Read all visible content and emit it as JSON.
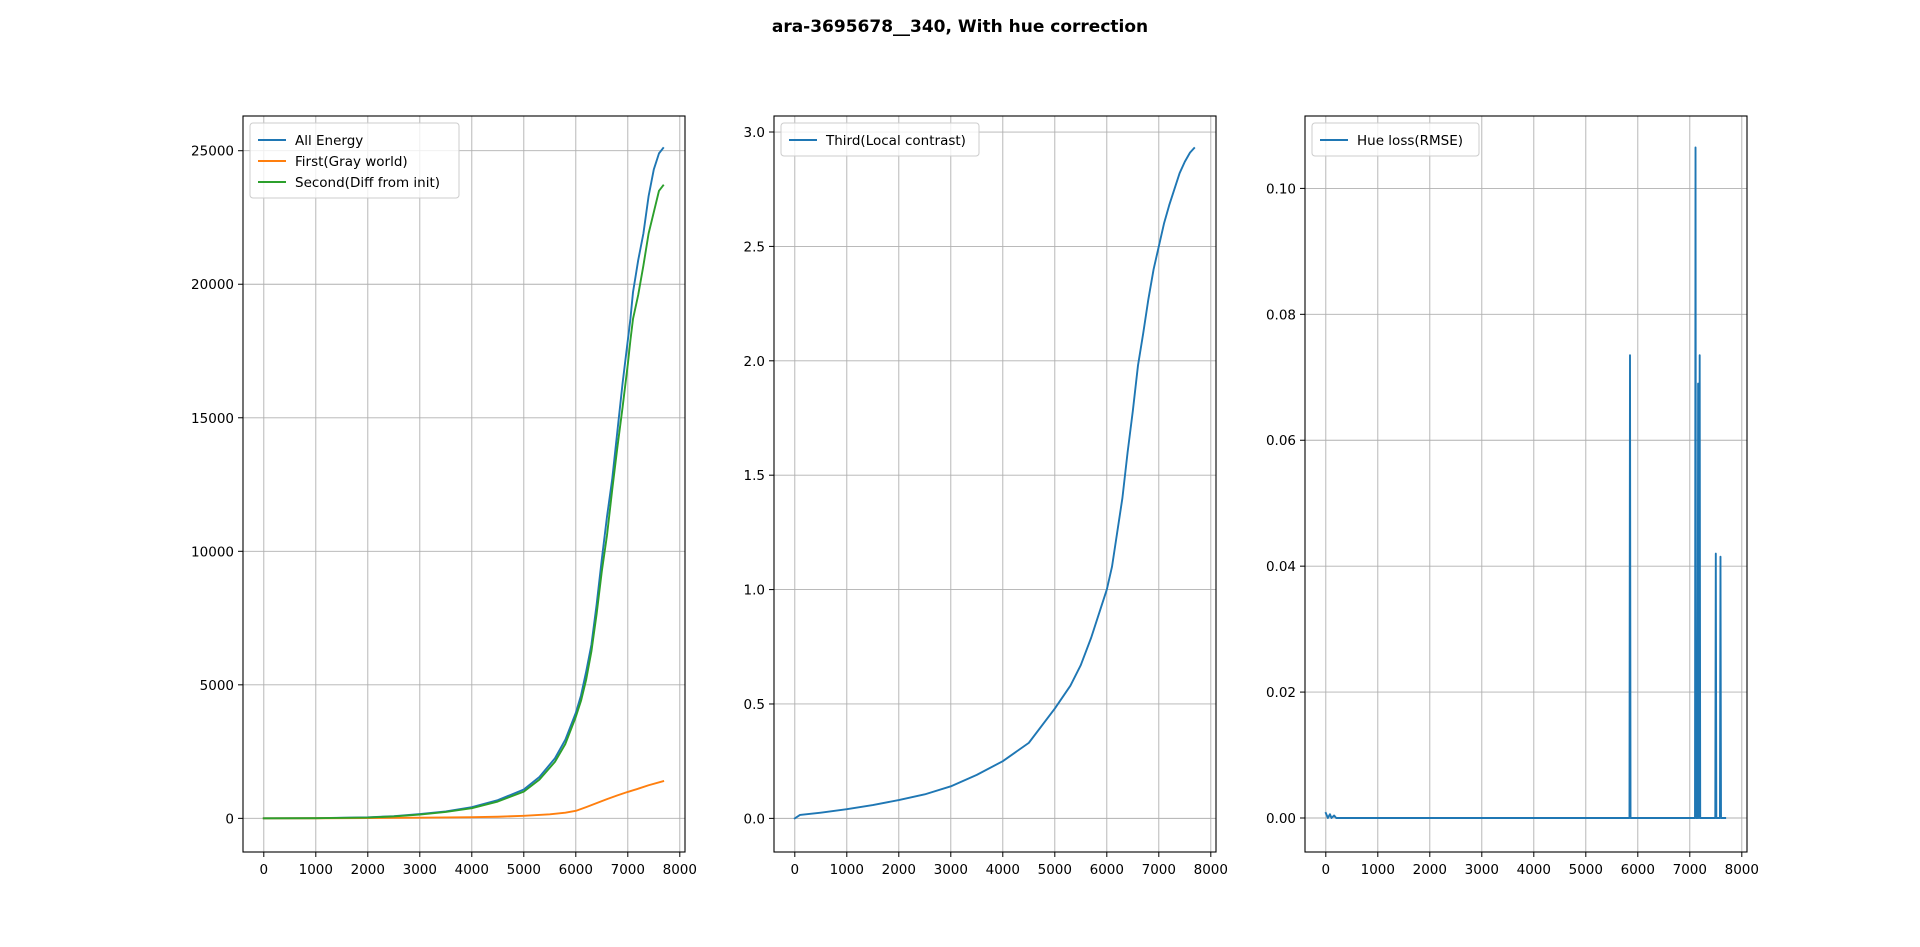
{
  "figure": {
    "title": "ara-3695678__340, With hue correction"
  },
  "chart_data": [
    {
      "type": "line",
      "title": "",
      "xlabel": "",
      "ylabel": "",
      "xlim": [
        -400,
        8100
      ],
      "ylim": [
        -1260,
        26300
      ],
      "xticks": [
        0,
        1000,
        2000,
        3000,
        4000,
        5000,
        6000,
        7000,
        8000
      ],
      "xtick_labels": [
        "0",
        "1000",
        "2000",
        "3000",
        "4000",
        "5000",
        "6000",
        "7000",
        "8000"
      ],
      "yticks": [
        0,
        5000,
        10000,
        15000,
        20000,
        25000
      ],
      "ytick_labels": [
        "0",
        "5000",
        "10000",
        "15000",
        "20000",
        "25000"
      ],
      "grid": true,
      "legend": "upper left",
      "series": [
        {
          "name": "All Energy",
          "color": "#1f77b4",
          "points": [
            [
              0,
              0
            ],
            [
              1000,
              8
            ],
            [
              2000,
              40
            ],
            [
              2500,
              80
            ],
            [
              3000,
              160
            ],
            [
              3500,
              260
            ],
            [
              4000,
              420
            ],
            [
              4500,
              680
            ],
            [
              5000,
              1080
            ],
            [
              5300,
              1550
            ],
            [
              5600,
              2250
            ],
            [
              5800,
              2950
            ],
            [
              6000,
              3950
            ],
            [
              6100,
              4600
            ],
            [
              6200,
              5500
            ],
            [
              6300,
              6500
            ],
            [
              6400,
              8000
            ],
            [
              6500,
              9700
            ],
            [
              6600,
              11300
            ],
            [
              6700,
              12700
            ],
            [
              6800,
              14500
            ],
            [
              6900,
              16300
            ],
            [
              7000,
              17900
            ],
            [
              7050,
              18700
            ],
            [
              7100,
              19700
            ],
            [
              7200,
              20900
            ],
            [
              7300,
              21900
            ],
            [
              7400,
              23300
            ],
            [
              7500,
              24300
            ],
            [
              7600,
              24900
            ],
            [
              7680,
              25100
            ]
          ]
        },
        {
          "name": "First(Gray world)",
          "color": "#ff7f0e",
          "points": [
            [
              0,
              0
            ],
            [
              1000,
              4
            ],
            [
              2000,
              12
            ],
            [
              3000,
              25
            ],
            [
              4000,
              45
            ],
            [
              4500,
              60
            ],
            [
              5000,
              95
            ],
            [
              5500,
              150
            ],
            [
              5800,
              210
            ],
            [
              6000,
              280
            ],
            [
              6200,
              420
            ],
            [
              6400,
              570
            ],
            [
              6600,
              720
            ],
            [
              6800,
              860
            ],
            [
              7000,
              990
            ],
            [
              7200,
              1110
            ],
            [
              7400,
              1240
            ],
            [
              7680,
              1390
            ]
          ]
        },
        {
          "name": "Second(Diff from init)",
          "color": "#2ca02c",
          "points": [
            [
              0,
              0
            ],
            [
              1000,
              8
            ],
            [
              2000,
              30
            ],
            [
              2500,
              70
            ],
            [
              3000,
              140
            ],
            [
              3500,
              240
            ],
            [
              4000,
              380
            ],
            [
              4500,
              630
            ],
            [
              5000,
              1000
            ],
            [
              5300,
              1450
            ],
            [
              5600,
              2120
            ],
            [
              5800,
              2790
            ],
            [
              6000,
              3800
            ],
            [
              6100,
              4400
            ],
            [
              6200,
              5200
            ],
            [
              6300,
              6250
            ],
            [
              6400,
              7650
            ],
            [
              6500,
              9250
            ],
            [
              6600,
              10600
            ],
            [
              6700,
              12300
            ],
            [
              6800,
              13900
            ],
            [
              6900,
              15400
            ],
            [
              7000,
              17000
            ],
            [
              7050,
              17900
            ],
            [
              7100,
              18700
            ],
            [
              7200,
              19600
            ],
            [
              7300,
              20700
            ],
            [
              7400,
              21900
            ],
            [
              7500,
              22700
            ],
            [
              7600,
              23500
            ],
            [
              7680,
              23700
            ]
          ]
        }
      ]
    },
    {
      "type": "line",
      "title": "",
      "xlabel": "",
      "ylabel": "",
      "xlim": [
        -400,
        8100
      ],
      "ylim": [
        -0.147,
        3.07
      ],
      "xticks": [
        0,
        1000,
        2000,
        3000,
        4000,
        5000,
        6000,
        7000,
        8000
      ],
      "xtick_labels": [
        "0",
        "1000",
        "2000",
        "3000",
        "4000",
        "5000",
        "6000",
        "7000",
        "8000"
      ],
      "yticks": [
        0,
        0.5,
        1.0,
        1.5,
        2.0,
        2.5,
        3.0
      ],
      "ytick_labels": [
        "0.0",
        "0.5",
        "1.0",
        "1.5",
        "2.0",
        "2.5",
        "3.0"
      ],
      "grid": true,
      "legend": "upper left",
      "series": [
        {
          "name": "Third(Local contrast)",
          "color": "#1f77b4",
          "points": [
            [
              0,
              0
            ],
            [
              100,
              0.015
            ],
            [
              500,
              0.025
            ],
            [
              1000,
              0.04
            ],
            [
              1500,
              0.058
            ],
            [
              2000,
              0.08
            ],
            [
              2500,
              0.105
            ],
            [
              3000,
              0.14
            ],
            [
              3500,
              0.19
            ],
            [
              4000,
              0.25
            ],
            [
              4500,
              0.33
            ],
            [
              5000,
              0.48
            ],
            [
              5300,
              0.58
            ],
            [
              5500,
              0.67
            ],
            [
              5700,
              0.79
            ],
            [
              5900,
              0.93
            ],
            [
              6000,
              1.0
            ],
            [
              6100,
              1.1
            ],
            [
              6200,
              1.25
            ],
            [
              6300,
              1.4
            ],
            [
              6400,
              1.6
            ],
            [
              6500,
              1.78
            ],
            [
              6600,
              1.98
            ],
            [
              6700,
              2.12
            ],
            [
              6800,
              2.27
            ],
            [
              6900,
              2.4
            ],
            [
              7000,
              2.5
            ],
            [
              7100,
              2.6
            ],
            [
              7200,
              2.68
            ],
            [
              7300,
              2.75
            ],
            [
              7400,
              2.82
            ],
            [
              7500,
              2.87
            ],
            [
              7600,
              2.91
            ],
            [
              7680,
              2.93
            ]
          ]
        }
      ]
    },
    {
      "type": "line",
      "title": "",
      "xlabel": "",
      "ylabel": "",
      "xlim": [
        -400,
        8100
      ],
      "ylim": [
        -0.0054,
        0.1115
      ],
      "xticks": [
        0,
        1000,
        2000,
        3000,
        4000,
        5000,
        6000,
        7000,
        8000
      ],
      "xtick_labels": [
        "0",
        "1000",
        "2000",
        "3000",
        "4000",
        "5000",
        "6000",
        "7000",
        "8000"
      ],
      "yticks": [
        0,
        0.02,
        0.04,
        0.06,
        0.08,
        0.1
      ],
      "ytick_labels": [
        "0.00",
        "0.02",
        "0.04",
        "0.06",
        "0.08",
        "0.10"
      ],
      "grid": true,
      "legend": "upper left",
      "series": [
        {
          "name": "Hue loss(RMSE)",
          "color": "#1f77b4",
          "points": [
            [
              0,
              0.0008
            ],
            [
              20,
              0.0004
            ],
            [
              40,
              0
            ],
            [
              80,
              0.0006
            ],
            [
              110,
              0
            ],
            [
              160,
              0.0004
            ],
            [
              200,
              0
            ],
            [
              5840,
              0
            ],
            [
              5850,
              0.0735
            ],
            [
              5860,
              0
            ],
            [
              7100,
              0
            ],
            [
              7110,
              0.1065
            ],
            [
              7120,
              0
            ],
            [
              7150,
              0
            ],
            [
              7160,
              0.069
            ],
            [
              7170,
              0
            ],
            [
              7180,
              0
            ],
            [
              7190,
              0.0735
            ],
            [
              7200,
              0
            ],
            [
              7490,
              0
            ],
            [
              7500,
              0.042
            ],
            [
              7510,
              0
            ],
            [
              7580,
              0
            ],
            [
              7590,
              0.0415
            ],
            [
              7600,
              0
            ],
            [
              7680,
              0
            ]
          ]
        }
      ]
    }
  ]
}
